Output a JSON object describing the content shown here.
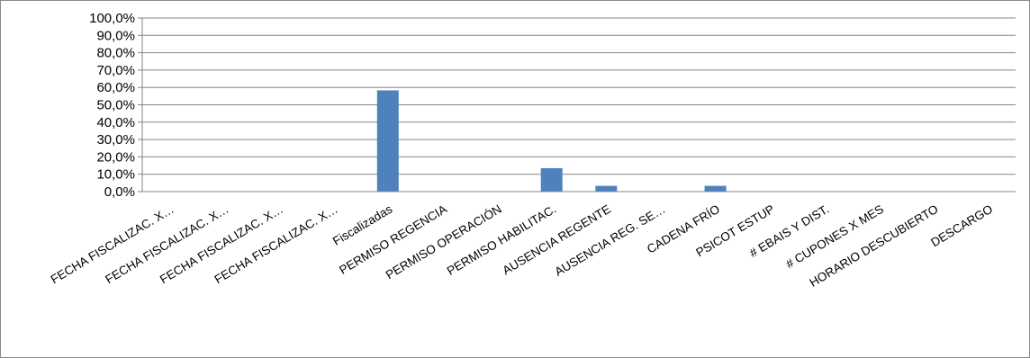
{
  "chart_data": {
    "type": "bar",
    "title": "",
    "xlabel": "",
    "ylabel": "",
    "ylim": [
      0,
      100
    ],
    "yticks": [
      "0,0%",
      "10,0%",
      "20,0%",
      "30,0%",
      "40,0%",
      "50,0%",
      "60,0%",
      "70,0%",
      "80,0%",
      "90,0%",
      "100,0%"
    ],
    "grid": true,
    "legend": "none",
    "bar_color": "#4f81bd",
    "categories": [
      "FECHA FISCALIZAC. X…",
      "FECHA FISCALIZAC. X…",
      "FECHA FISCALIZAC. X…",
      "FECHA FISCALIZAC. X…",
      "Fiscalizadas",
      "PERMISO REGENCIA",
      "PERMISO OPERACIÓN",
      "PERMISO HABILITAC.",
      "AUSENCIA REGENTE",
      "AUSENCIA REG. SE…",
      "CADENA FRÍO",
      "PSICOT ESTUP",
      "# EBAIS Y DIST.",
      "# CUPONES X MES",
      "HORARIO DESCUBIERTO",
      "DESCARGO"
    ],
    "values": [
      0,
      0,
      0,
      0,
      58.3,
      0,
      0,
      13.5,
      3.3,
      0,
      3.3,
      0,
      0,
      0,
      0,
      0
    ]
  }
}
